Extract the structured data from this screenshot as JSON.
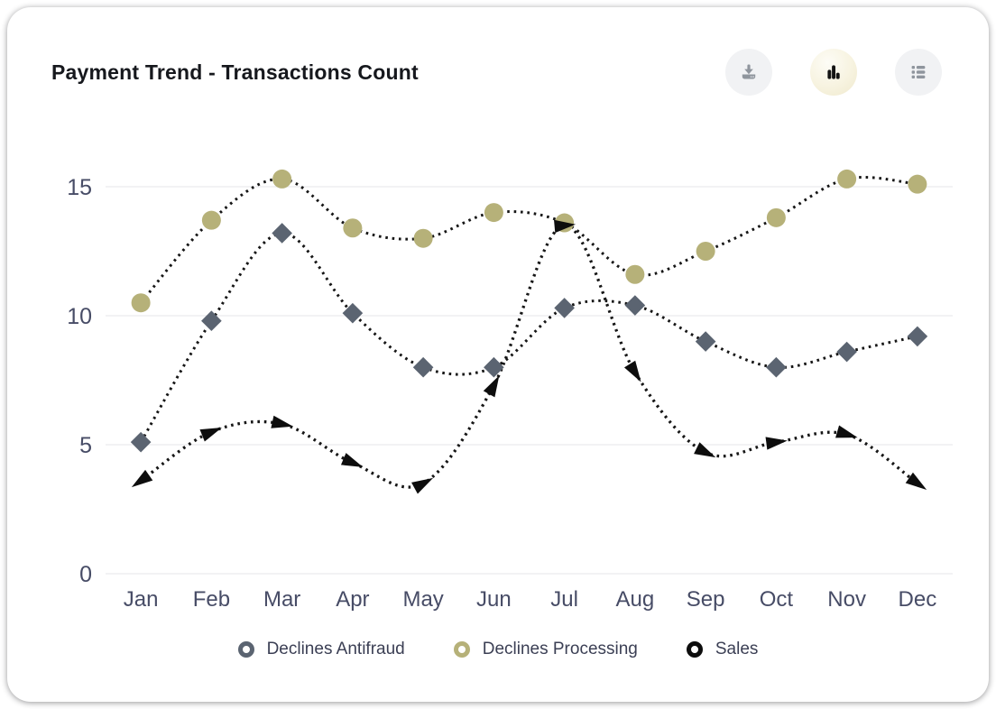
{
  "header": {
    "title": "Payment Trend - Transactions Count",
    "actions": [
      {
        "id": "download",
        "icon": "download-icon",
        "active": false
      },
      {
        "id": "chart-view",
        "icon": "bar-chart-icon",
        "active": true
      },
      {
        "id": "list-view",
        "icon": "list-icon",
        "active": false
      }
    ]
  },
  "chart_data": {
    "type": "line",
    "title": "Payment Trend - Transactions Count",
    "categories": [
      "Jan",
      "Feb",
      "Mar",
      "Apr",
      "May",
      "Jun",
      "Jul",
      "Aug",
      "Sep",
      "Oct",
      "Nov",
      "Dec"
    ],
    "series": [
      {
        "name": "Declines Antifraud",
        "marker": "diamond",
        "color": "#5b6471",
        "values": [
          5.1,
          9.8,
          13.2,
          10.1,
          8.0,
          8.0,
          10.3,
          10.4,
          9.0,
          8.0,
          8.6,
          9.2
        ]
      },
      {
        "name": "Declines Processing",
        "marker": "circle",
        "color": "#b6b179",
        "values": [
          10.5,
          13.7,
          15.3,
          13.4,
          13.0,
          14.0,
          13.6,
          11.6,
          12.5,
          13.8,
          15.3,
          15.1
        ]
      },
      {
        "name": "Sales",
        "marker": "arrow",
        "color": "#0d0d0d",
        "values": [
          3.6,
          5.5,
          5.8,
          4.3,
          3.5,
          7.3,
          13.5,
          7.8,
          4.7,
          5.1,
          5.4,
          3.5
        ]
      }
    ],
    "line_style": "dotted",
    "line_color": "#161616",
    "yticks": [
      0,
      5,
      10,
      15
    ],
    "ylim": [
      0,
      17
    ],
    "xlabel": "",
    "ylabel": "",
    "grid": "horizontal",
    "legend_position": "bottom"
  },
  "colors": {
    "axis_label": "#474c66",
    "gridline": "#ededf1",
    "legend_text": "#3b3f54",
    "card_bg": "#ffffff",
    "button_bg": "#f1f2f4",
    "button_icon": "#8f959d",
    "active_button_icon": "#141414"
  }
}
